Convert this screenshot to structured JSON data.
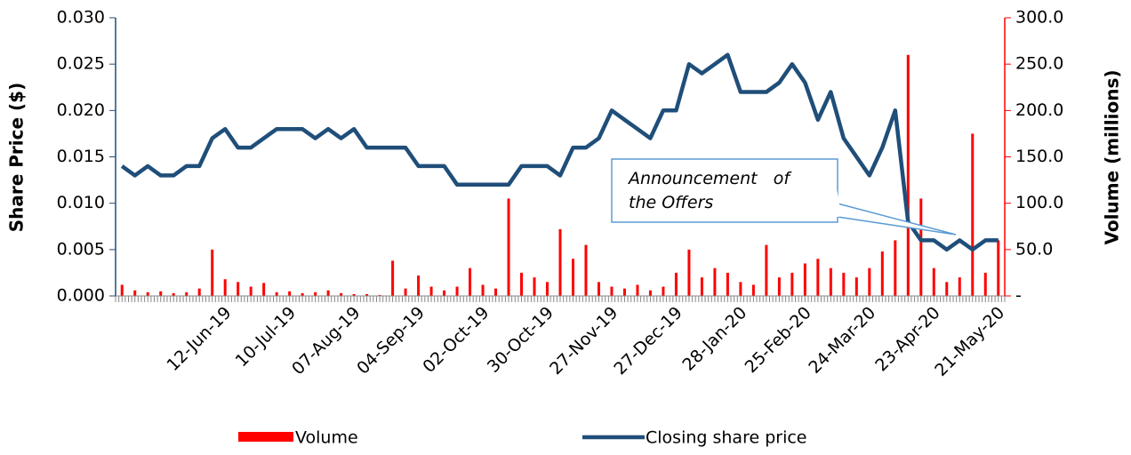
{
  "chart_data": {
    "type": "bar_line",
    "y_label": "Share Price ($)",
    "y2_label": "Volume (millions)",
    "annotation": [
      "Announcement   of",
      "the Offers"
    ],
    "categories": [
      null,
      null,
      null,
      null,
      null,
      null,
      null,
      null,
      "12-Jun-19",
      null,
      null,
      null,
      null,
      "10-Jul-19",
      null,
      null,
      null,
      null,
      "07-Aug-19",
      null,
      null,
      null,
      null,
      "04-Sep-19",
      null,
      null,
      null,
      null,
      "02-Oct-19",
      null,
      null,
      null,
      null,
      "30-Oct-19",
      null,
      null,
      null,
      null,
      "27-Nov-19",
      null,
      null,
      null,
      null,
      "27-Dec-19",
      null,
      null,
      null,
      null,
      "28-Jan-20",
      null,
      null,
      null,
      null,
      "25-Feb-20",
      null,
      null,
      null,
      null,
      "24-Mar-20",
      null,
      null,
      null,
      null,
      "23-Apr-20",
      null,
      null,
      null,
      null,
      "21-May-20"
    ],
    "series": [
      {
        "name": "Volume",
        "kind": "bar",
        "axis": "y2",
        "color": "#ff0000",
        "values": [
          12,
          6,
          4,
          5,
          3,
          4,
          8,
          50,
          18,
          15,
          10,
          14,
          4,
          5,
          3,
          4,
          6,
          3,
          2,
          2,
          1,
          38,
          8,
          22,
          10,
          6,
          10,
          30,
          12,
          8,
          105,
          25,
          20,
          15,
          72,
          40,
          55,
          15,
          10,
          8,
          12,
          6,
          10,
          25,
          50,
          20,
          30,
          25,
          15,
          12,
          55,
          20,
          25,
          35,
          40,
          30,
          25,
          20,
          30,
          48,
          60,
          260,
          105,
          30,
          15,
          20,
          175,
          25,
          60
        ]
      },
      {
        "name": "Closing share price",
        "kind": "line",
        "color": "#1f4e79",
        "values": [
          0.014,
          0.013,
          0.014,
          0.013,
          0.013,
          0.014,
          0.014,
          0.017,
          0.018,
          0.016,
          0.016,
          0.017,
          0.018,
          0.018,
          0.018,
          0.017,
          0.018,
          0.017,
          0.018,
          0.016,
          0.016,
          0.016,
          0.016,
          0.014,
          0.014,
          0.014,
          0.012,
          0.012,
          0.012,
          0.012,
          0.012,
          0.014,
          0.014,
          0.014,
          0.013,
          0.016,
          0.016,
          0.017,
          0.02,
          0.019,
          0.018,
          0.017,
          0.02,
          0.02,
          0.025,
          0.024,
          0.025,
          0.026,
          0.022,
          0.022,
          0.022,
          0.023,
          0.025,
          0.023,
          0.019,
          0.022,
          0.017,
          0.015,
          0.013,
          0.016,
          0.02,
          0.008,
          0.006,
          0.006,
          0.005,
          0.006,
          0.005,
          0.006,
          0.006
        ]
      }
    ],
    "ylim": [
      0,
      0.03
    ],
    "yticks": [
      {
        "value": 0,
        "label": "0.000"
      },
      {
        "value": 0.005,
        "label": "0.005"
      },
      {
        "value": 0.01,
        "label": "0.010"
      },
      {
        "value": 0.015,
        "label": "0.015"
      },
      {
        "value": 0.02,
        "label": "0.020"
      },
      {
        "value": 0.025,
        "label": "0.025"
      },
      {
        "value": 0.03,
        "label": "0.030"
      }
    ],
    "y2lim": [
      0,
      300
    ],
    "y2ticks": [
      {
        "value": 0,
        "label": "-"
      },
      {
        "value": 50,
        "label": "50.0"
      },
      {
        "value": 100,
        "label": "100.0"
      },
      {
        "value": 150,
        "label": "150.0"
      },
      {
        "value": 200,
        "label": "200.0"
      },
      {
        "value": 250,
        "label": "250.0"
      },
      {
        "value": 300,
        "label": "300.0"
      }
    ]
  }
}
